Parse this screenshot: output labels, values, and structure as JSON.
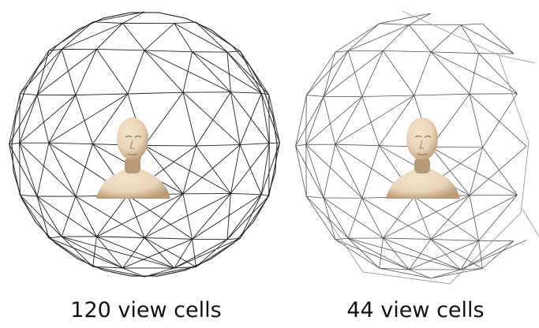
{
  "figure": {
    "panels": [
      {
        "caption": "120 view cells",
        "view_cells": 120
      },
      {
        "caption": "44 view cells",
        "view_cells": 44
      }
    ],
    "colors": {
      "mesh_dense": "#222222",
      "mesh_sparse": "#555555",
      "mesh_faint": "#9a9a9a",
      "bust": "#e9d3b3",
      "bust_shadow": "#b99a74",
      "caption": "#111111"
    }
  }
}
